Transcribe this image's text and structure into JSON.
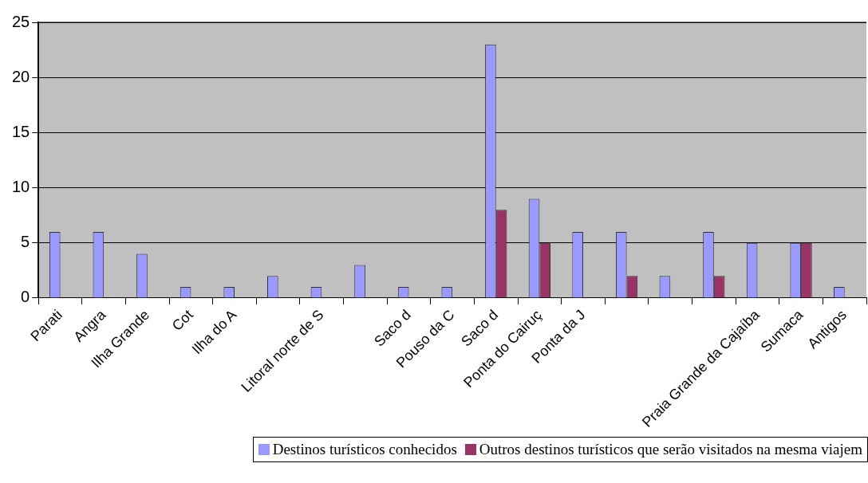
{
  "chart_data": {
    "type": "bar",
    "categories": [
      "Parati",
      "Angra",
      "Ilha Grande",
      "Cot",
      "Ilha do A",
      null,
      "Litoral norte de S",
      null,
      "Saco d",
      "Pouso da C",
      "Saco d",
      "Ponta do Cairuç",
      "Ponta da J",
      null,
      null,
      null,
      "Praia Grande da Cajaíba",
      "Sumaca",
      "Antigos"
    ],
    "series": [
      {
        "name": "Destinos turísticos conhecidos",
        "color": "#9999ff",
        "values": [
          6,
          6,
          4,
          1,
          1,
          2,
          1,
          3,
          1,
          1,
          23,
          9,
          6,
          6,
          2,
          6,
          5,
          5,
          1
        ]
      },
      {
        "name": "Outros destinos turísticos que serão visitados na mesma viajem",
        "color": "#993366",
        "values": [
          null,
          null,
          null,
          null,
          null,
          null,
          null,
          null,
          null,
          null,
          8,
          5,
          null,
          2,
          null,
          2,
          null,
          5,
          null
        ]
      }
    ],
    "ylim": [
      0,
      25
    ],
    "yticks": [
      0,
      5,
      10,
      15,
      20,
      25
    ],
    "grid": "y",
    "legend": "bottom"
  }
}
